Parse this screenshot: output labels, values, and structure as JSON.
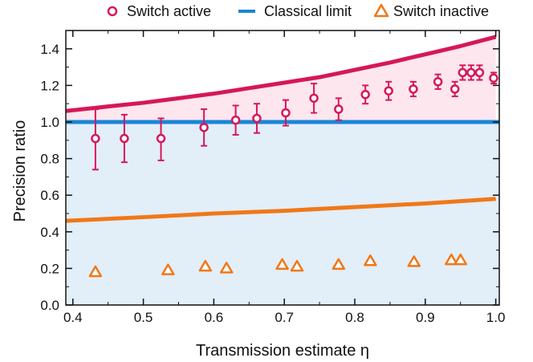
{
  "chart_data": {
    "type": "scatter",
    "xlabel": "Transmission estimate η",
    "ylabel": "Precision ratio",
    "xlim": [
      0.39,
      1.005
    ],
    "ylim": [
      0.0,
      1.5
    ],
    "x_ticks": [
      "0.4",
      "0.5",
      "0.6",
      "0.7",
      "0.8",
      "0.9",
      "1.0"
    ],
    "y_ticks": [
      "0.0",
      "0.2",
      "0.4",
      "0.6",
      "0.8",
      "1.0",
      "1.2",
      "1.4"
    ],
    "grid": false,
    "legend_position": "top",
    "legend": [
      {
        "label": "Switch active",
        "marker": "circle"
      },
      {
        "label": "Classical limit",
        "marker": "line"
      },
      {
        "label": "Switch inactive",
        "marker": "triangle"
      }
    ],
    "colors": {
      "active": "#d6175a",
      "classical": "#1a86d6",
      "inactive": "#f07818",
      "upper_fill": "#fde6ee",
      "lower_fill": "#e2eef8"
    },
    "series": [
      {
        "name": "Switch active",
        "type": "scatter",
        "x": [
          0.432,
          0.473,
          0.525,
          0.586,
          0.631,
          0.661,
          0.702,
          0.742,
          0.777,
          0.815,
          0.848,
          0.883,
          0.918,
          0.942,
          0.953,
          0.965,
          0.977,
          0.997
        ],
        "y": [
          0.91,
          0.91,
          0.91,
          0.97,
          1.01,
          1.02,
          1.05,
          1.13,
          1.07,
          1.15,
          1.17,
          1.18,
          1.22,
          1.18,
          1.27,
          1.27,
          1.27,
          1.24
        ],
        "err_low": [
          0.17,
          0.13,
          0.12,
          0.1,
          0.08,
          0.08,
          0.07,
          0.08,
          0.06,
          0.05,
          0.05,
          0.04,
          0.04,
          0.04,
          0.04,
          0.04,
          0.04,
          0.03
        ],
        "err_high": [
          0.16,
          0.13,
          0.11,
          0.1,
          0.08,
          0.08,
          0.07,
          0.08,
          0.06,
          0.05,
          0.05,
          0.04,
          0.04,
          0.04,
          0.04,
          0.04,
          0.04,
          0.03
        ]
      },
      {
        "name": "Classical limit",
        "type": "line",
        "x": [
          0.39,
          1.005
        ],
        "y": [
          1.0,
          1.0
        ]
      },
      {
        "name": "Switch inactive",
        "type": "scatter",
        "x": [
          0.432,
          0.535,
          0.588,
          0.618,
          0.697,
          0.718,
          0.777,
          0.822,
          0.884,
          0.937,
          0.95
        ],
        "y": [
          0.18,
          0.19,
          0.21,
          0.2,
          0.22,
          0.21,
          0.22,
          0.24,
          0.235,
          0.245,
          0.245
        ]
      },
      {
        "type": "line",
        "x": [
          0.39,
          0.45,
          0.5,
          0.55,
          0.6,
          0.65,
          0.7,
          0.75,
          0.8,
          0.85,
          0.9,
          0.95,
          1.0
        ],
        "y": [
          1.06,
          1.085,
          1.105,
          1.13,
          1.155,
          1.185,
          1.215,
          1.245,
          1.285,
          1.325,
          1.37,
          1.415,
          1.465
        ]
      },
      {
        "type": "line",
        "x": [
          0.39,
          0.5,
          0.6,
          0.7,
          0.8,
          0.9,
          1.0
        ],
        "y": [
          0.46,
          0.48,
          0.5,
          0.515,
          0.535,
          0.555,
          0.58
        ]
      }
    ]
  }
}
